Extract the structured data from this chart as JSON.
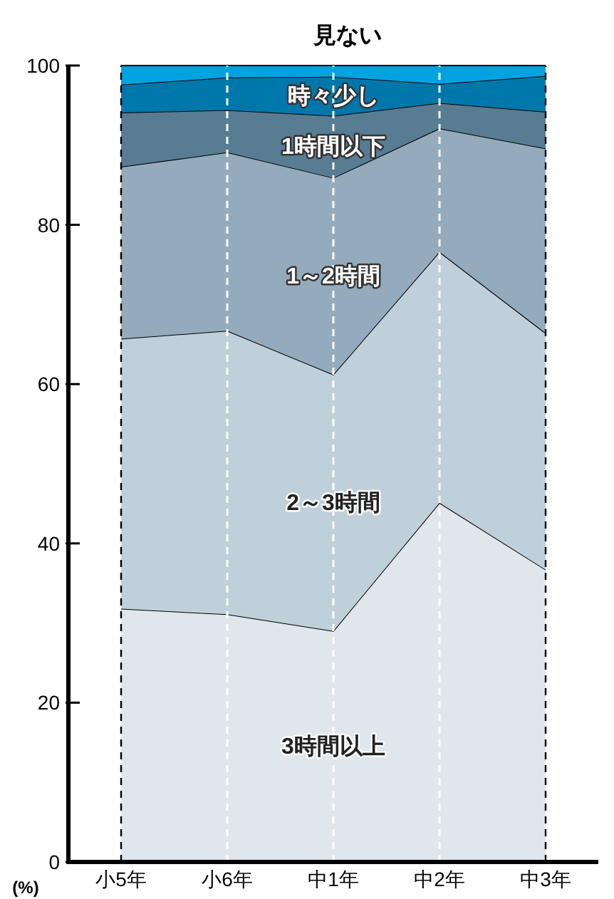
{
  "chart_data": {
    "type": "area",
    "stacked": true,
    "ylabel": "(%)",
    "categories": [
      "小5年",
      "小6年",
      "中1年",
      "中2年",
      "中3年"
    ],
    "series": [
      {
        "name": "3時間以上",
        "color": "#dfe6ec",
        "values": [
          31.8,
          31.1,
          29.0,
          45.1,
          36.7
        ]
      },
      {
        "name": "2～3時間",
        "color": "#bfd0da",
        "values": [
          33.9,
          35.6,
          32.2,
          31.5,
          29.7
        ]
      },
      {
        "name": "1～2時間",
        "color": "#94abbd",
        "values": [
          21.6,
          22.4,
          24.7,
          15.5,
          23.2
        ]
      },
      {
        "name": "1時間以下",
        "color": "#587c92",
        "values": [
          6.8,
          5.3,
          7.8,
          3.2,
          4.6
        ]
      },
      {
        "name": "時々少し",
        "color": "#0077aa",
        "values": [
          3.5,
          4.1,
          4.9,
          2.4,
          4.5
        ]
      },
      {
        "name": "見ない",
        "color": "#00a3e0",
        "values": [
          2.4,
          1.5,
          1.4,
          2.3,
          1.3
        ]
      }
    ],
    "ylim": [
      0,
      100
    ],
    "yticks": [
      0,
      20,
      40,
      60,
      80,
      100
    ],
    "grid": "x",
    "legend": false
  }
}
